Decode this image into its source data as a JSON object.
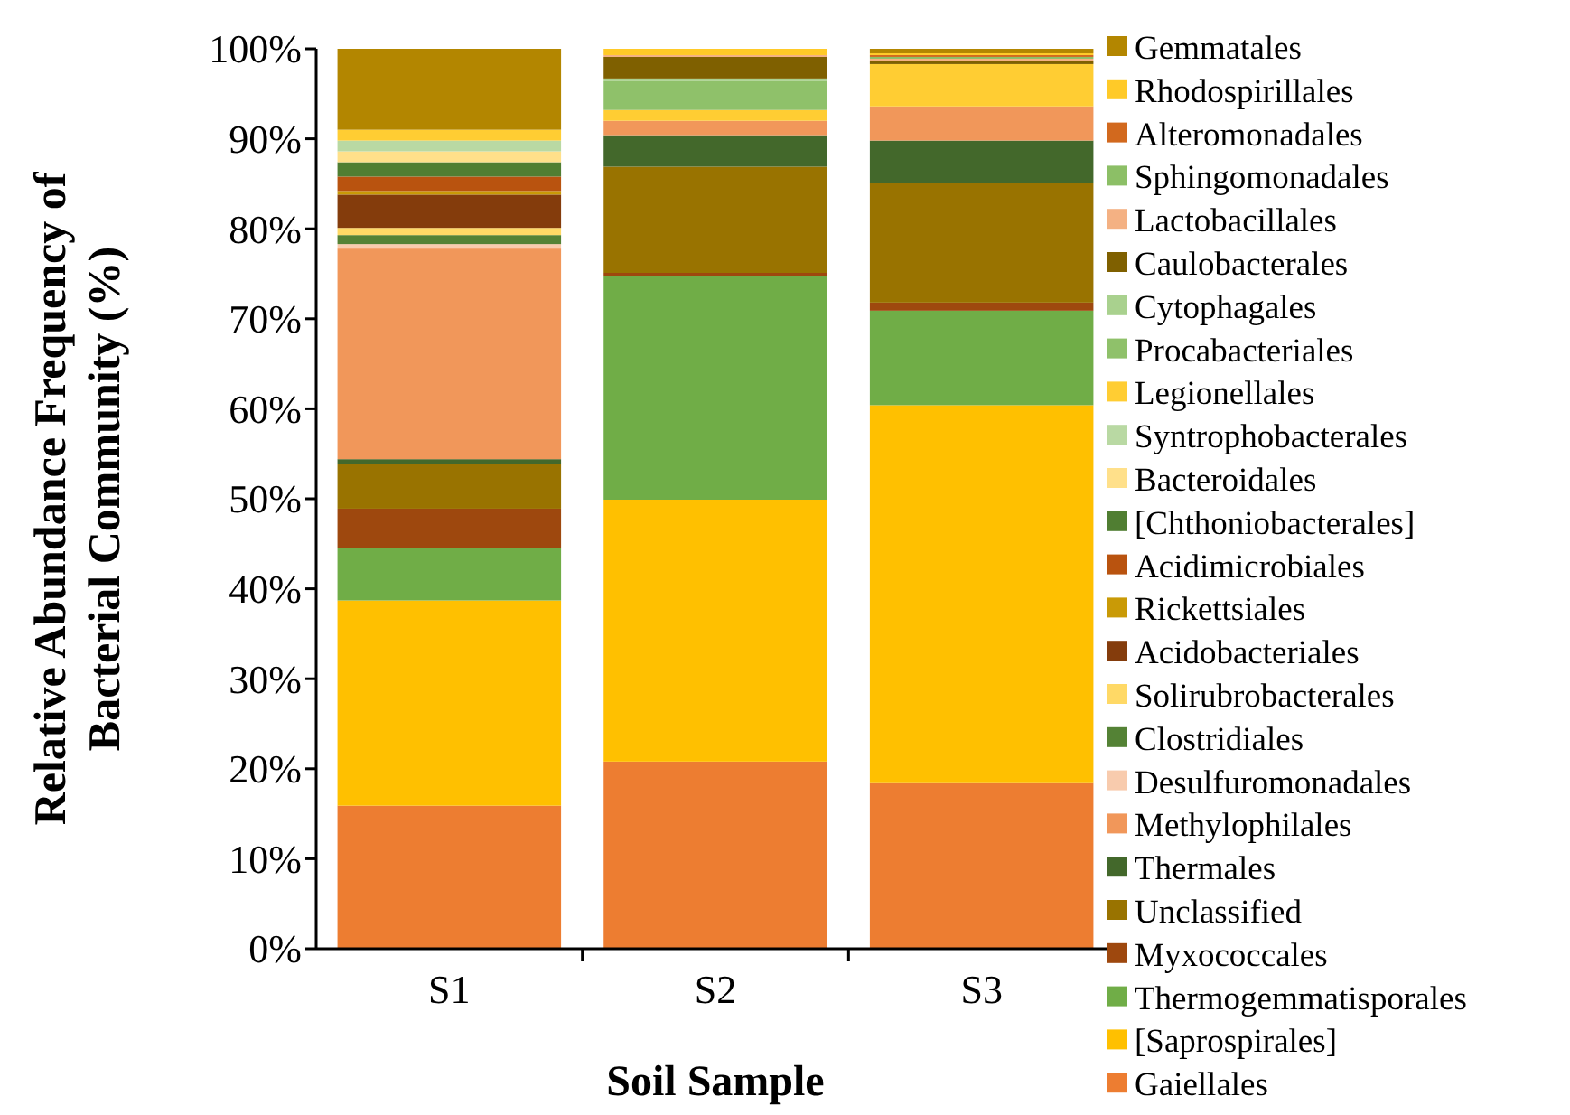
{
  "chart_data": {
    "type": "bar",
    "stacked": true,
    "xlabel": "Soil Sample",
    "ylabel": "Relative Abundance Frequency of Bacterial Community (%)",
    "categories": [
      "S1",
      "S2",
      "S3"
    ],
    "ylim": [
      0,
      100
    ],
    "yticks": [
      {
        "value": 0,
        "label": "0%"
      },
      {
        "value": 10,
        "label": "10%"
      },
      {
        "value": 20,
        "label": "20%"
      },
      {
        "value": 30,
        "label": "30%"
      },
      {
        "value": 40,
        "label": "40%"
      },
      {
        "value": 50,
        "label": "50%"
      },
      {
        "value": 60,
        "label": "60%"
      },
      {
        "value": 70,
        "label": "70%"
      },
      {
        "value": 80,
        "label": "80%"
      },
      {
        "value": 90,
        "label": "90%"
      },
      {
        "value": 100,
        "label": "100%"
      }
    ],
    "grid": false,
    "legend": "right",
    "series": [
      {
        "name": "Gaiellales",
        "color": "#ed7d31",
        "values": [
          15.9,
          20.8,
          18.4
        ]
      },
      {
        "name": "[Saprospirales]",
        "color": "#ffc000",
        "values": [
          22.8,
          29.1,
          42.0
        ]
      },
      {
        "name": "Thermogemmatisporales",
        "color": "#70ad47",
        "values": [
          5.8,
          24.9,
          10.5
        ]
      },
      {
        "name": "Myxococcales",
        "color": "#9e480e",
        "values": [
          4.4,
          0.3,
          0.9
        ]
      },
      {
        "name": "Unclassified",
        "color": "#997300",
        "values": [
          5.0,
          11.8,
          13.3
        ]
      },
      {
        "name": "Thermales",
        "color": "#43682b",
        "values": [
          0.5,
          3.5,
          4.7
        ]
      },
      {
        "name": "Methylophilales",
        "color": "#f1975a",
        "values": [
          23.4,
          1.6,
          3.8
        ]
      },
      {
        "name": "Desulfuromonadales",
        "color": "#f8cbad",
        "values": [
          0.5,
          0,
          0
        ]
      },
      {
        "name": "Clostridiales",
        "color": "#548235",
        "values": [
          1.0,
          0,
          0
        ]
      },
      {
        "name": "Solirubrobacterales",
        "color": "#ffd966",
        "values": [
          0.8,
          0,
          0
        ]
      },
      {
        "name": "Acidobacteriales",
        "color": "#843c0c",
        "values": [
          3.7,
          0,
          0
        ]
      },
      {
        "name": "Rickettsiales",
        "color": "#c99a06",
        "values": [
          0.4,
          0,
          0
        ]
      },
      {
        "name": "Acidimicrobiales",
        "color": "#b9530f",
        "values": [
          1.6,
          0,
          0
        ]
      },
      {
        "name": "[Chthoniobacterales]",
        "color": "#507e32",
        "values": [
          1.6,
          0,
          0
        ]
      },
      {
        "name": "Bacteroidales",
        "color": "#ffe08a",
        "values": [
          1.2,
          0,
          0
        ]
      },
      {
        "name": "Syntrophobacterales",
        "color": "#b9d9a3",
        "values": [
          1.2,
          0,
          0
        ]
      },
      {
        "name": "Legionellales",
        "color": "#ffcd33",
        "values": [
          1.2,
          1.2,
          4.7
        ]
      },
      {
        "name": "Procabacteriales",
        "color": "#8fc16a",
        "values": [
          0,
          3.2,
          0
        ]
      },
      {
        "name": "Cytophagales",
        "color": "#a9d18e",
        "values": [
          0,
          0.3,
          0
        ]
      },
      {
        "name": "Caulobacterales",
        "color": "#7f6000",
        "values": [
          0,
          2.4,
          0.3
        ]
      },
      {
        "name": "Lactobacillales",
        "color": "#f4b183",
        "values": [
          0,
          0.2,
          0.3
        ]
      },
      {
        "name": "Sphingomonadales",
        "color": "#8cbf66",
        "values": [
          0,
          0,
          0.2
        ]
      },
      {
        "name": "Alteromonadales",
        "color": "#d2691e",
        "values": [
          0,
          0,
          0.2
        ]
      },
      {
        "name": "Rhodospirillales",
        "color": "#ffca28",
        "values": [
          0,
          0.7,
          0.2
        ]
      },
      {
        "name": "Gemmatales",
        "color": "#b38600",
        "values": [
          9.0,
          0,
          0.5
        ]
      }
    ]
  }
}
